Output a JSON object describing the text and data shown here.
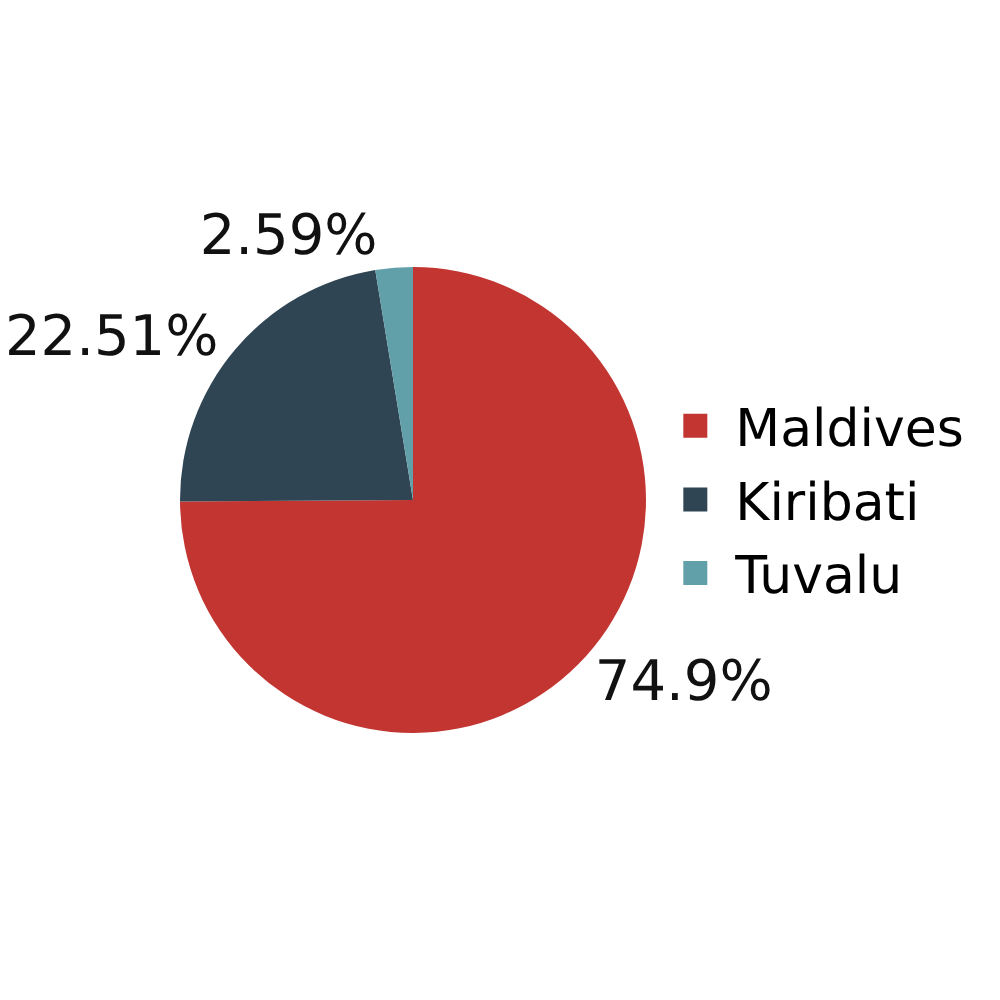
{
  "chart_data": {
    "type": "pie",
    "categories": [
      "Maldives",
      "Kiribati",
      "Tuvalu"
    ],
    "values": [
      74.9,
      22.51,
      2.59
    ],
    "value_labels": [
      "74.9%",
      "22.51%",
      "2.59%"
    ],
    "colors": [
      "#c23531",
      "#2f4554",
      "#61a0a8"
    ],
    "legend": "right"
  }
}
